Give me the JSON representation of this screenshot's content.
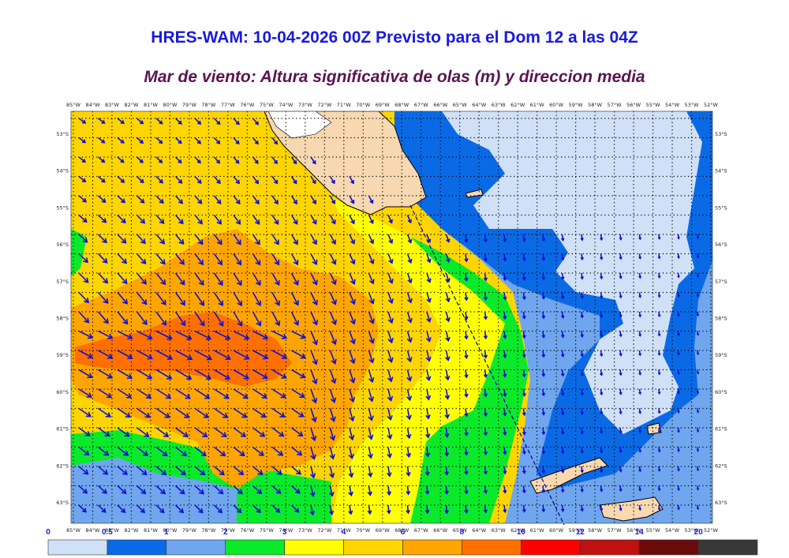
{
  "header": {
    "title": "HRES-WAM: 10-04-2026 00Z Previsto para el Dom 12 a las 04Z",
    "subtitle": "Mar de viento: Altura significativa de olas (m) y direccion media"
  },
  "map": {
    "longitude_labels": [
      "85°W",
      "84°W",
      "83°W",
      "82°W",
      "81°W",
      "80°W",
      "79°W",
      "78°W",
      "77°W",
      "76°W",
      "75°W",
      "74°W",
      "73°W",
      "72°W",
      "71°W",
      "70°W",
      "69°W",
      "68°W",
      "67°W",
      "66°W",
      "65°W",
      "64°W",
      "63°W",
      "62°W",
      "61°W",
      "60°W",
      "59°W",
      "58°W",
      "57°W",
      "56°W",
      "55°W",
      "54°W",
      "53°W",
      "52°W"
    ],
    "latitude_labels": [
      "53°S",
      "54°S",
      "55°S",
      "56°S",
      "57°S",
      "58°S",
      "59°S",
      "60°S",
      "61°S",
      "62°S",
      "63°S"
    ],
    "arrow_color": "#1010d0",
    "land_color": "#f8d8b0"
  },
  "legend": {
    "tick_labels": [
      "0",
      "0.5",
      "1",
      "2",
      "3",
      "4",
      "6",
      "8",
      "10",
      "12",
      "14",
      "20"
    ],
    "colors": [
      "#cfe0f7",
      "#0a6ae6",
      "#6fa6ee",
      "#0bea2a",
      "#ffff00",
      "#ffd500",
      "#ffa500",
      "#ff7000",
      "#ff0000",
      "#c01010",
      "#6a0a0a",
      "#383838"
    ]
  }
}
